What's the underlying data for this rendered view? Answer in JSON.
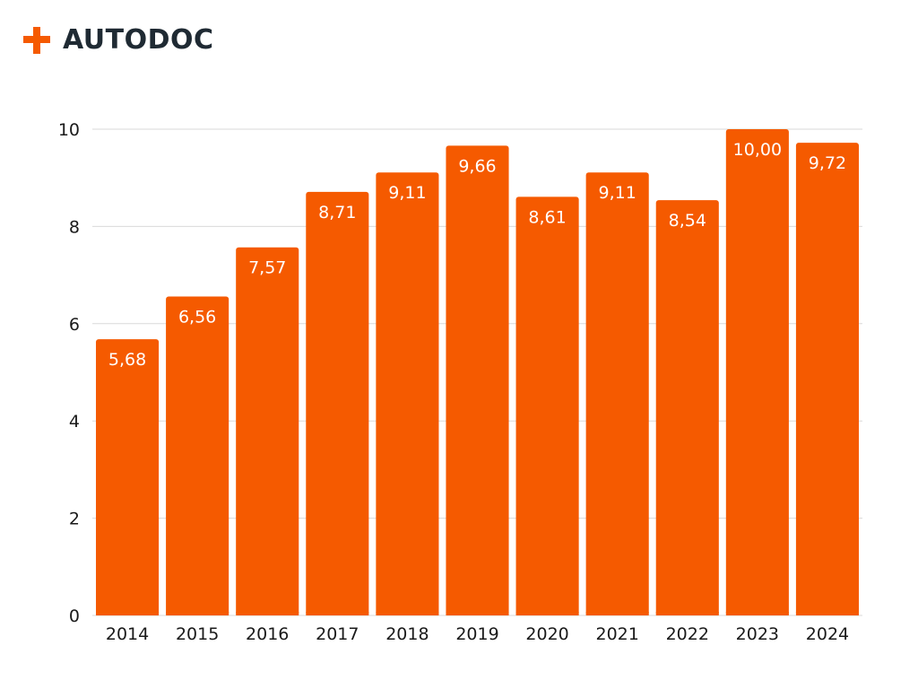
{
  "brand": {
    "name": "AUTODOC",
    "accent_color": "#F55A00",
    "text_color": "#1F2A33",
    "icon": "plus-logo-icon"
  },
  "chart_data": {
    "type": "bar",
    "categories": [
      "2014",
      "2015",
      "2016",
      "2017",
      "2018",
      "2019",
      "2020",
      "2021",
      "2022",
      "2023",
      "2024"
    ],
    "values": [
      5.68,
      6.56,
      7.57,
      8.71,
      9.11,
      9.66,
      8.61,
      9.11,
      8.54,
      10.0,
      9.72
    ],
    "data_labels": [
      "5,68",
      "6,56",
      "7,57",
      "8,71",
      "9,11",
      "9,66",
      "8,61",
      "9,11",
      "8,54",
      "10,00",
      "9,72"
    ],
    "yticks": [
      "0",
      "2",
      "4",
      "6",
      "8",
      "10"
    ],
    "ylim": [
      0,
      10
    ],
    "title": "",
    "xlabel": "",
    "ylabel": "",
    "grid": true,
    "legend": "none",
    "bar_color": "#F55A00",
    "grid_color": "#D9D9D9"
  }
}
